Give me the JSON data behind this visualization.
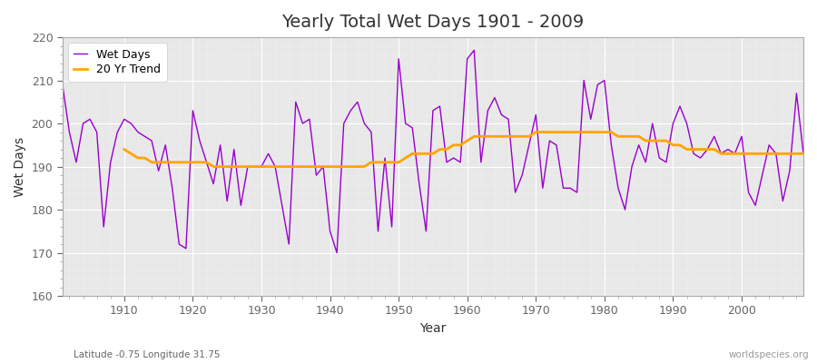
{
  "title": "Yearly Total Wet Days 1901 - 2009",
  "xlabel": "Year",
  "ylabel": "Wet Days",
  "subtitle": "Latitude -0.75 Longitude 31.75",
  "watermark": "worldspecies.org",
  "wet_days_color": "#9900cc",
  "trend_color": "#ffa500",
  "fig_bg_color": "#ffffff",
  "plot_bg_color": "#e8e8e8",
  "ylim": [
    160,
    220
  ],
  "xlim": [
    1901,
    2009
  ],
  "years": [
    1901,
    1902,
    1903,
    1904,
    1905,
    1906,
    1907,
    1908,
    1909,
    1910,
    1911,
    1912,
    1913,
    1914,
    1915,
    1916,
    1917,
    1918,
    1919,
    1920,
    1921,
    1922,
    1923,
    1924,
    1925,
    1926,
    1927,
    1928,
    1929,
    1930,
    1931,
    1932,
    1933,
    1934,
    1935,
    1936,
    1937,
    1938,
    1939,
    1940,
    1941,
    1942,
    1943,
    1944,
    1945,
    1946,
    1947,
    1948,
    1949,
    1950,
    1951,
    1952,
    1953,
    1954,
    1955,
    1956,
    1957,
    1958,
    1959,
    1960,
    1961,
    1962,
    1963,
    1964,
    1965,
    1966,
    1967,
    1968,
    1969,
    1970,
    1971,
    1972,
    1973,
    1974,
    1975,
    1976,
    1977,
    1978,
    1979,
    1980,
    1981,
    1982,
    1983,
    1984,
    1985,
    1986,
    1987,
    1988,
    1989,
    1990,
    1991,
    1992,
    1993,
    1994,
    1995,
    1996,
    1997,
    1998,
    1999,
    2000,
    2001,
    2002,
    2003,
    2004,
    2005,
    2006,
    2007,
    2008,
    2009
  ],
  "wet_days": [
    209,
    198,
    191,
    200,
    201,
    198,
    176,
    191,
    198,
    201,
    200,
    198,
    197,
    196,
    189,
    195,
    185,
    172,
    171,
    203,
    196,
    191,
    186,
    195,
    182,
    194,
    181,
    190,
    190,
    190,
    193,
    190,
    181,
    172,
    205,
    200,
    201,
    188,
    190,
    175,
    170,
    200,
    203,
    205,
    200,
    198,
    175,
    192,
    176,
    215,
    200,
    199,
    186,
    175,
    203,
    204,
    191,
    192,
    191,
    215,
    217,
    191,
    203,
    206,
    202,
    201,
    184,
    188,
    195,
    202,
    185,
    196,
    195,
    185,
    185,
    184,
    210,
    201,
    209,
    210,
    195,
    185,
    180,
    190,
    195,
    191,
    200,
    192,
    191,
    200,
    204,
    200,
    193,
    192,
    194,
    197,
    193,
    194,
    193,
    197,
    184,
    181,
    188,
    195,
    193,
    182,
    189,
    207,
    193
  ],
  "trend": [
    null,
    null,
    null,
    null,
    null,
    null,
    null,
    null,
    null,
    194,
    193,
    192,
    192,
    191,
    191,
    191,
    191,
    191,
    191,
    191,
    191,
    191,
    190,
    190,
    190,
    190,
    190,
    190,
    190,
    190,
    190,
    190,
    190,
    190,
    190,
    190,
    190,
    190,
    190,
    190,
    190,
    190,
    190,
    190,
    190,
    191,
    191,
    191,
    191,
    191,
    192,
    193,
    193,
    193,
    193,
    194,
    194,
    195,
    195,
    196,
    197,
    197,
    197,
    197,
    197,
    197,
    197,
    197,
    197,
    198,
    198,
    198,
    198,
    198,
    198,
    198,
    198,
    198,
    198,
    198,
    198,
    197,
    197,
    197,
    197,
    196,
    196,
    196,
    196,
    195,
    195,
    194,
    194,
    194,
    194,
    194,
    193,
    193,
    193,
    193,
    193,
    193,
    193,
    193,
    193,
    193,
    193,
    193,
    193
  ]
}
